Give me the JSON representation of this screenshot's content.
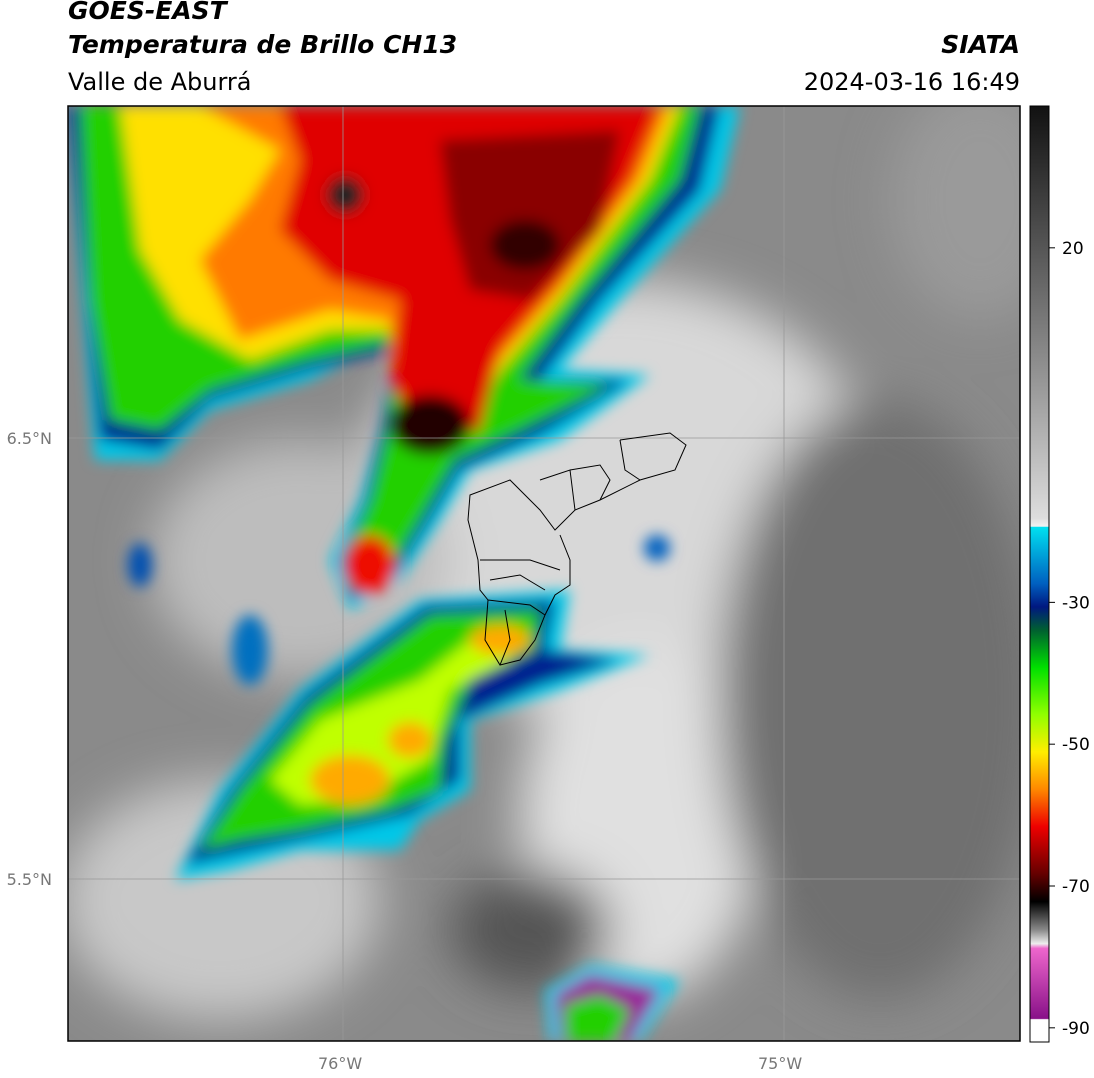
{
  "header": {
    "satellite": "GOES-EAST",
    "product": "Temperatura de Brillo CH13",
    "region": "Valle de Aburrá",
    "agency": "SIATA",
    "datetime": "2024-03-16 16:49"
  },
  "map": {
    "lat_labels": [
      "6.5°N",
      "5.5°N"
    ],
    "lon_labels": [
      "76°W",
      "75°W"
    ]
  },
  "colorbar": {
    "lim": [
      -92,
      40
    ],
    "ticks": [
      20,
      -30,
      -50,
      -70,
      -90
    ]
  }
}
